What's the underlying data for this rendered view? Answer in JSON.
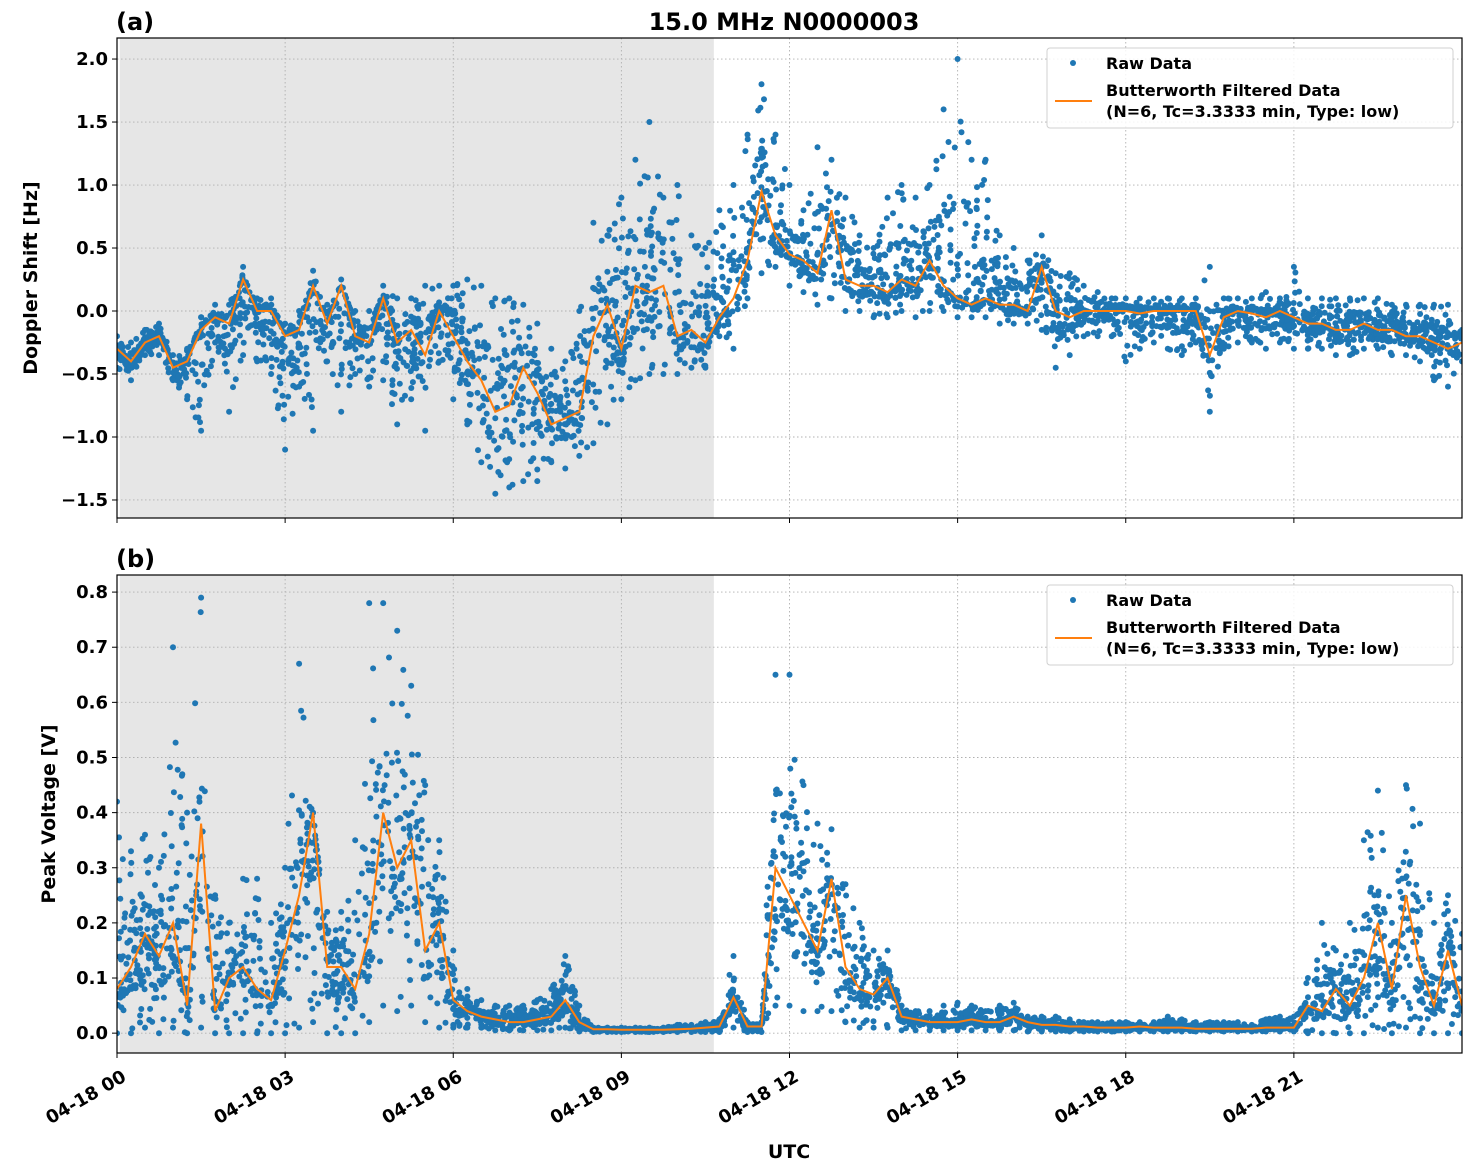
{
  "title": "15.0 MHz N0000003",
  "xlabel": "UTC",
  "x_tick_labels": [
    "04-18 00",
    "04-18 03",
    "04-18 06",
    "04-18 09",
    "04-18 12",
    "04-18 15",
    "04-18 18",
    "04-18 21"
  ],
  "colors": {
    "raw": "#1f77b4",
    "filtered": "#ff7f0e",
    "shade": "#e6e6e6",
    "grid": "#b0b0b0"
  },
  "chart_data": [
    {
      "type": "line",
      "panel_label": "(a)",
      "ylabel": "Doppler Shift [Hz]",
      "xlim_hours": [
        0,
        24
      ],
      "ylim": [
        -1.643,
        2.167
      ],
      "y_ticks": [
        2.0,
        1.5,
        1.0,
        0.5,
        0.0,
        -0.5,
        -1.0,
        -1.5
      ],
      "y_tick_labels": [
        "2.0",
        "1.5",
        "1.0",
        "0.5",
        "0.0",
        "−0.5",
        "−1.0",
        "−1.5"
      ],
      "x_ticks_hours": [
        0,
        3,
        6,
        9,
        12,
        15,
        18,
        21
      ],
      "grid": true,
      "shaded_interval_hours": [
        0.05,
        10.65
      ],
      "legend": {
        "placement": "top-right",
        "raw": "Raw Data",
        "filtered_line1": "Butterworth Filtered Data",
        "filtered_line2": "(N=6, Tc=3.3333 min, Type: low)"
      },
      "x_step_hours": 0.25,
      "filtered": [
        -0.3,
        -0.4,
        -0.25,
        -0.2,
        -0.45,
        -0.4,
        -0.15,
        -0.05,
        -0.1,
        0.25,
        0.0,
        0.0,
        -0.2,
        -0.15,
        0.2,
        -0.1,
        0.2,
        -0.2,
        -0.25,
        0.1,
        -0.25,
        -0.15,
        -0.35,
        0.0,
        -0.2,
        -0.4,
        -0.55,
        -0.8,
        -0.75,
        -0.45,
        -0.65,
        -0.9,
        -0.85,
        -0.8,
        -0.2,
        0.05,
        -0.3,
        0.2,
        0.15,
        0.2,
        -0.2,
        -0.15,
        -0.25,
        -0.05,
        0.1,
        0.4,
        0.95,
        0.6,
        0.45,
        0.4,
        0.3,
        0.8,
        0.25,
        0.2,
        0.2,
        0.15,
        0.25,
        0.2,
        0.4,
        0.2,
        0.1,
        0.05,
        0.1,
        0.05,
        0.05,
        0.0,
        0.35,
        0.0,
        -0.05,
        0.0,
        0.0,
        0.0,
        0.0,
        -0.02,
        0.0,
        0.0,
        0.0,
        0.0,
        -0.35,
        -0.05,
        0.0,
        -0.02,
        -0.05,
        0.0,
        -0.05,
        -0.1,
        -0.1,
        -0.15,
        -0.15,
        -0.1,
        -0.15,
        -0.15,
        -0.2,
        -0.2,
        -0.25,
        -0.3,
        -0.25
      ],
      "raw_max": [
        -0.2,
        -0.25,
        -0.15,
        -0.1,
        -0.35,
        -0.3,
        -0.05,
        0.05,
        0.05,
        0.35,
        0.1,
        0.1,
        -0.1,
        0.0,
        0.32,
        0.05,
        0.25,
        0.0,
        0.0,
        0.2,
        0.1,
        0.1,
        0.2,
        0.2,
        0.2,
        0.25,
        0.2,
        0.1,
        0.1,
        0.05,
        -0.1,
        -0.3,
        -0.4,
        0.0,
        0.7,
        0.6,
        0.9,
        1.2,
        1.5,
        0.9,
        1.0,
        0.6,
        0.5,
        0.8,
        1.0,
        1.4,
        1.8,
        1.4,
        1.0,
        0.8,
        1.3,
        1.2,
        0.9,
        0.6,
        0.5,
        0.9,
        1.0,
        0.9,
        1.0,
        1.6,
        2.0,
        1.2,
        1.2,
        0.6,
        0.5,
        0.4,
        0.6,
        0.3,
        0.3,
        0.2,
        0.15,
        0.1,
        0.1,
        0.1,
        0.1,
        0.1,
        0.1,
        0.1,
        0.35,
        0.1,
        0.1,
        0.1,
        0.15,
        0.1,
        0.35,
        0.1,
        0.1,
        0.1,
        0.1,
        0.1,
        0.1,
        0.05,
        0.05,
        0.05,
        0.05,
        0.05,
        -0.15
      ],
      "raw_min": [
        -0.45,
        -0.55,
        -0.35,
        -0.35,
        -0.55,
        -0.7,
        -0.95,
        -0.25,
        -0.8,
        -0.35,
        -0.4,
        -0.5,
        -1.1,
        -0.6,
        -0.95,
        -0.4,
        -0.8,
        -0.5,
        -0.6,
        -0.55,
        -0.9,
        -0.7,
        -0.95,
        -0.4,
        -0.7,
        -0.9,
        -1.2,
        -1.45,
        -1.4,
        -1.35,
        -1.35,
        -1.2,
        -1.25,
        -1.15,
        -1.05,
        -0.9,
        -0.7,
        -0.55,
        -0.5,
        -0.5,
        -0.5,
        -0.45,
        -0.45,
        -0.2,
        -0.3,
        0.1,
        0.3,
        0.35,
        0.2,
        0.15,
        0.05,
        0.1,
        0.0,
        0.0,
        -0.05,
        -0.05,
        0.0,
        -0.05,
        0.0,
        0.0,
        -0.05,
        -0.05,
        -0.05,
        -0.1,
        -0.1,
        -0.1,
        -0.15,
        -0.45,
        -0.35,
        -0.2,
        -0.2,
        -0.2,
        -0.4,
        -0.3,
        -0.25,
        -0.3,
        -0.35,
        -0.25,
        -0.8,
        -0.3,
        -0.25,
        -0.25,
        -0.3,
        -0.25,
        -0.3,
        -0.3,
        -0.3,
        -0.35,
        -0.35,
        -0.3,
        -0.3,
        -0.35,
        -0.35,
        -0.4,
        -0.55,
        -0.6,
        -0.4
      ]
    },
    {
      "type": "line",
      "panel_label": "(b)",
      "ylabel": "Peak Voltage [V]",
      "xlim_hours": [
        0,
        24
      ],
      "ylim": [
        -0.036,
        0.831
      ],
      "y_ticks": [
        0.8,
        0.7,
        0.6,
        0.5,
        0.4,
        0.3,
        0.2,
        0.1,
        0.0
      ],
      "y_tick_labels": [
        "0.8",
        "0.7",
        "0.6",
        "0.5",
        "0.4",
        "0.3",
        "0.2",
        "0.1",
        "0.0"
      ],
      "x_ticks_hours": [
        0,
        3,
        6,
        9,
        12,
        15,
        18,
        21
      ],
      "grid": true,
      "shaded_interval_hours": [
        0.05,
        10.65
      ],
      "legend": {
        "placement": "top-right",
        "raw": "Raw Data",
        "filtered_line1": "Butterworth Filtered Data",
        "filtered_line2": "(N=6, Tc=3.3333 min, Type: low)"
      },
      "x_step_hours": 0.25,
      "filtered": [
        0.08,
        0.12,
        0.18,
        0.14,
        0.2,
        0.05,
        0.38,
        0.04,
        0.1,
        0.12,
        0.08,
        0.06,
        0.15,
        0.25,
        0.4,
        0.12,
        0.12,
        0.08,
        0.18,
        0.4,
        0.3,
        0.35,
        0.15,
        0.2,
        0.06,
        0.04,
        0.03,
        0.025,
        0.02,
        0.02,
        0.025,
        0.03,
        0.06,
        0.02,
        0.007,
        0.007,
        0.006,
        0.006,
        0.006,
        0.006,
        0.007,
        0.008,
        0.01,
        0.012,
        0.065,
        0.012,
        0.012,
        0.3,
        0.25,
        0.2,
        0.15,
        0.28,
        0.12,
        0.08,
        0.07,
        0.1,
        0.03,
        0.025,
        0.02,
        0.02,
        0.02,
        0.025,
        0.02,
        0.02,
        0.03,
        0.02,
        0.015,
        0.015,
        0.012,
        0.012,
        0.01,
        0.01,
        0.01,
        0.012,
        0.01,
        0.01,
        0.01,
        0.008,
        0.008,
        0.008,
        0.008,
        0.008,
        0.01,
        0.01,
        0.01,
        0.05,
        0.04,
        0.08,
        0.05,
        0.1,
        0.2,
        0.08,
        0.25,
        0.12,
        0.05,
        0.15,
        0.05
      ],
      "raw_max": [
        0.42,
        0.33,
        0.36,
        0.3,
        0.7,
        0.4,
        0.79,
        0.25,
        0.2,
        0.28,
        0.28,
        0.2,
        0.3,
        0.67,
        0.4,
        0.22,
        0.22,
        0.35,
        0.78,
        0.78,
        0.73,
        0.63,
        0.45,
        0.35,
        0.15,
        0.08,
        0.06,
        0.05,
        0.05,
        0.05,
        0.06,
        0.08,
        0.14,
        0.05,
        0.01,
        0.01,
        0.01,
        0.01,
        0.01,
        0.01,
        0.015,
        0.015,
        0.02,
        0.025,
        0.14,
        0.02,
        0.02,
        0.65,
        0.65,
        0.45,
        0.38,
        0.37,
        0.27,
        0.2,
        0.15,
        0.15,
        0.05,
        0.04,
        0.04,
        0.05,
        0.055,
        0.05,
        0.04,
        0.05,
        0.055,
        0.03,
        0.03,
        0.03,
        0.025,
        0.02,
        0.02,
        0.02,
        0.02,
        0.02,
        0.02,
        0.03,
        0.025,
        0.02,
        0.02,
        0.02,
        0.02,
        0.015,
        0.025,
        0.03,
        0.03,
        0.1,
        0.2,
        0.15,
        0.2,
        0.35,
        0.44,
        0.2,
        0.45,
        0.38,
        0.2,
        0.25,
        0.18
      ],
      "raw_min": [
        0.0,
        0.0,
        0.01,
        0.0,
        0.01,
        0.0,
        0.01,
        0.0,
        0.0,
        0.0,
        0.0,
        0.0,
        0.0,
        0.01,
        0.02,
        0.0,
        0.0,
        0.0,
        0.02,
        0.05,
        0.04,
        0.05,
        0.02,
        0.01,
        0.01,
        0.01,
        0.01,
        0.005,
        0.005,
        0.005,
        0.005,
        0.005,
        0.01,
        0.003,
        0.002,
        0.002,
        0.002,
        0.002,
        0.002,
        0.002,
        0.002,
        0.002,
        0.002,
        0.002,
        0.01,
        0.002,
        0.002,
        0.05,
        0.05,
        0.04,
        0.04,
        0.04,
        0.02,
        0.01,
        0.01,
        0.01,
        0.005,
        0.005,
        0.005,
        0.005,
        0.005,
        0.005,
        0.005,
        0.005,
        0.005,
        0.003,
        0.003,
        0.003,
        0.003,
        0.003,
        0.003,
        0.003,
        0.003,
        0.003,
        0.003,
        0.003,
        0.003,
        0.003,
        0.003,
        0.003,
        0.003,
        0.003,
        0.003,
        0.003,
        0.003,
        0.0,
        0.0,
        0.0,
        0.0,
        0.0,
        0.01,
        0.0,
        0.01,
        0.0,
        0.0,
        0.0,
        0.0
      ]
    }
  ]
}
